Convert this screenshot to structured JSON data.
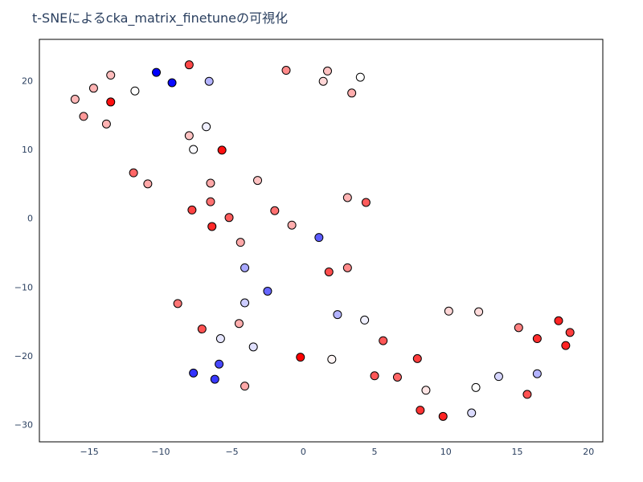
{
  "chart_data": {
    "type": "scatter",
    "title": "t-SNEによるcka_matrix_finetuneの可視化",
    "xlabel": "",
    "ylabel": "",
    "xlim": [
      -18.5,
      21.0
    ],
    "ylim": [
      -32.5,
      26.0
    ],
    "x_ticks": [
      -15,
      -10,
      -5,
      0,
      5,
      10,
      15,
      20
    ],
    "y_ticks": [
      -30,
      -20,
      -10,
      0,
      10,
      20
    ],
    "grid": false,
    "legend": "none",
    "colorscale": [
      "#0000ff",
      "#ffffff",
      "#ff0000"
    ],
    "points": [
      {
        "x": -10.3,
        "y": 21.2,
        "c": 0.0
      },
      {
        "x": -9.2,
        "y": 19.7,
        "c": 0.02
      },
      {
        "x": -6.6,
        "y": 19.9,
        "c": 0.35
      },
      {
        "x": -8.0,
        "y": 22.3,
        "c": 0.86
      },
      {
        "x": -13.5,
        "y": 20.8,
        "c": 0.63
      },
      {
        "x": -14.7,
        "y": 18.9,
        "c": 0.65
      },
      {
        "x": -16.0,
        "y": 17.3,
        "c": 0.64
      },
      {
        "x": -11.8,
        "y": 18.5,
        "c": 0.5
      },
      {
        "x": -13.5,
        "y": 16.9,
        "c": 0.97
      },
      {
        "x": -15.4,
        "y": 14.8,
        "c": 0.7
      },
      {
        "x": -13.8,
        "y": 13.7,
        "c": 0.65
      },
      {
        "x": -6.8,
        "y": 13.3,
        "c": 0.47
      },
      {
        "x": -8.0,
        "y": 12.0,
        "c": 0.62
      },
      {
        "x": -7.7,
        "y": 10.0,
        "c": 0.49
      },
      {
        "x": -5.7,
        "y": 9.9,
        "c": 0.97
      },
      {
        "x": -1.2,
        "y": 21.5,
        "c": 0.73
      },
      {
        "x": 1.7,
        "y": 21.4,
        "c": 0.62
      },
      {
        "x": 1.4,
        "y": 19.9,
        "c": 0.58
      },
      {
        "x": 4.0,
        "y": 20.5,
        "c": 0.5
      },
      {
        "x": 3.4,
        "y": 18.2,
        "c": 0.66
      },
      {
        "x": -11.9,
        "y": 6.6,
        "c": 0.8
      },
      {
        "x": -10.9,
        "y": 5.0,
        "c": 0.67
      },
      {
        "x": -6.5,
        "y": 5.1,
        "c": 0.67
      },
      {
        "x": -3.2,
        "y": 5.5,
        "c": 0.62
      },
      {
        "x": -6.5,
        "y": 2.4,
        "c": 0.78
      },
      {
        "x": -7.8,
        "y": 1.2,
        "c": 0.87
      },
      {
        "x": -5.2,
        "y": 0.1,
        "c": 0.82
      },
      {
        "x": -6.4,
        "y": -1.2,
        "c": 0.92
      },
      {
        "x": -2.0,
        "y": 1.1,
        "c": 0.78
      },
      {
        "x": -0.8,
        "y": -1.0,
        "c": 0.66
      },
      {
        "x": 3.1,
        "y": 3.0,
        "c": 0.65
      },
      {
        "x": 4.4,
        "y": 2.3,
        "c": 0.82
      },
      {
        "x": -4.4,
        "y": -3.5,
        "c": 0.67
      },
      {
        "x": 1.1,
        "y": -2.8,
        "c": 0.18
      },
      {
        "x": -4.1,
        "y": -7.2,
        "c": 0.33
      },
      {
        "x": 1.8,
        "y": -7.8,
        "c": 0.85
      },
      {
        "x": 3.1,
        "y": -7.2,
        "c": 0.73
      },
      {
        "x": -2.5,
        "y": -10.6,
        "c": 0.2
      },
      {
        "x": -8.8,
        "y": -12.4,
        "c": 0.77
      },
      {
        "x": -4.1,
        "y": -12.3,
        "c": 0.4
      },
      {
        "x": 10.2,
        "y": -13.5,
        "c": 0.58
      },
      {
        "x": 12.3,
        "y": -13.6,
        "c": 0.57
      },
      {
        "x": 2.4,
        "y": -14.0,
        "c": 0.35
      },
      {
        "x": 4.3,
        "y": -14.8,
        "c": 0.47
      },
      {
        "x": -4.5,
        "y": -15.3,
        "c": 0.66
      },
      {
        "x": -7.1,
        "y": -16.1,
        "c": 0.84
      },
      {
        "x": -5.8,
        "y": -17.5,
        "c": 0.45
      },
      {
        "x": -3.5,
        "y": -18.7,
        "c": 0.44
      },
      {
        "x": 5.6,
        "y": -17.8,
        "c": 0.83
      },
      {
        "x": 15.1,
        "y": -15.9,
        "c": 0.75
      },
      {
        "x": 17.9,
        "y": -14.9,
        "c": 0.93
      },
      {
        "x": 18.7,
        "y": -16.6,
        "c": 0.88
      },
      {
        "x": 16.4,
        "y": -17.5,
        "c": 0.91
      },
      {
        "x": 18.4,
        "y": -18.5,
        "c": 0.93
      },
      {
        "x": -0.2,
        "y": -20.2,
        "c": 1.0
      },
      {
        "x": 2.0,
        "y": -20.5,
        "c": 0.52
      },
      {
        "x": 8.0,
        "y": -20.4,
        "c": 0.88
      },
      {
        "x": -5.9,
        "y": -21.2,
        "c": 0.14
      },
      {
        "x": -7.7,
        "y": -22.5,
        "c": 0.1
      },
      {
        "x": -6.2,
        "y": -23.4,
        "c": 0.11
      },
      {
        "x": 5.0,
        "y": -22.9,
        "c": 0.83
      },
      {
        "x": 6.6,
        "y": -23.1,
        "c": 0.8
      },
      {
        "x": 13.7,
        "y": -23.0,
        "c": 0.42
      },
      {
        "x": 16.4,
        "y": -22.6,
        "c": 0.35
      },
      {
        "x": -4.1,
        "y": -24.4,
        "c": 0.67
      },
      {
        "x": 12.1,
        "y": -24.6,
        "c": 0.5
      },
      {
        "x": 8.6,
        "y": -25.0,
        "c": 0.55
      },
      {
        "x": 15.7,
        "y": -25.6,
        "c": 0.84
      },
      {
        "x": 8.2,
        "y": -27.9,
        "c": 0.9
      },
      {
        "x": 9.8,
        "y": -28.8,
        "c": 0.93
      },
      {
        "x": 11.8,
        "y": -28.3,
        "c": 0.43
      }
    ]
  }
}
